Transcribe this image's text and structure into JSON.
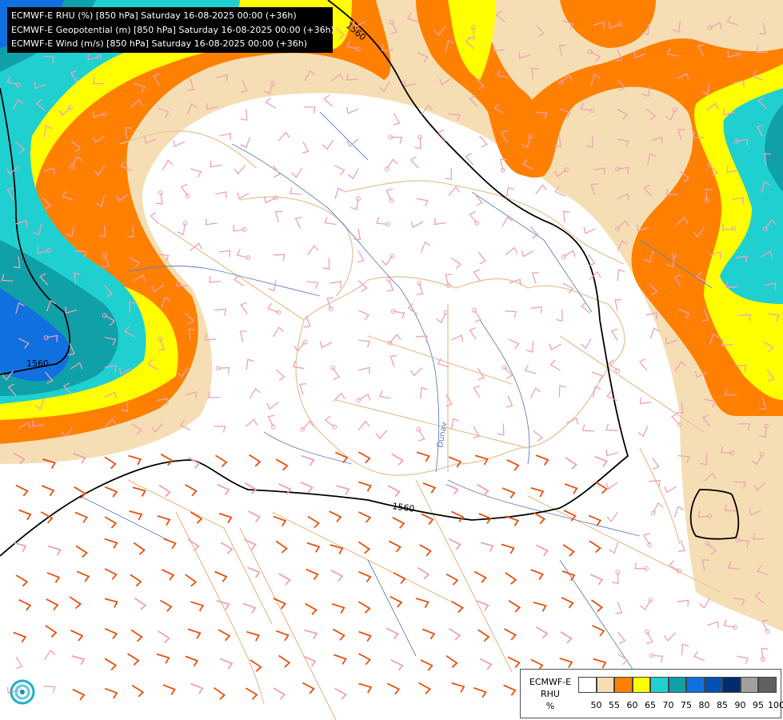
{
  "header": {
    "lines": [
      "ECMWF-E RHU (%) [850 hPa] Saturday 16-08-2025 00:00 (+36h)",
      "ECMWF-E Geopotential (m) [850 hPa] Saturday 16-08-2025 00:00 (+36h)",
      "ECMWF-E Wind (m/s) [850 hPa] Saturday 16-08-2025 00:00 (+36h)"
    ]
  },
  "map": {
    "contour_labels": [
      "1560",
      "1560",
      "1560"
    ],
    "river_label": "Dunav"
  },
  "legend": {
    "title_lines": [
      "ECMWF-E",
      "RHU",
      "%"
    ],
    "swatches": [
      {
        "color": "#ffffff"
      },
      {
        "color": "#f5deb3"
      },
      {
        "color": "#ff8000"
      },
      {
        "color": "#ffff00"
      },
      {
        "color": "#20d0d0"
      },
      {
        "color": "#10a0a8"
      },
      {
        "color": "#1070e0"
      },
      {
        "color": "#0050b0"
      },
      {
        "color": "#002b70"
      },
      {
        "color": "#a0a0a0"
      },
      {
        "color": "#606060"
      }
    ],
    "ticks": [
      "50",
      "55",
      "60",
      "65",
      "70",
      "75",
      "80",
      "85",
      "90",
      "95",
      "100"
    ]
  },
  "colors": {
    "tan": "#f5deb3",
    "orange": "#ff8000",
    "yellow": "#ffff00",
    "cyan": "#20d0d0",
    "teal": "#10a0a8",
    "blue": "#1070e0",
    "darkblue": "#0050b0",
    "border": "#e8c8a0",
    "river": "#6080c0",
    "wind_pink": "#f0a0b8",
    "wind_orange": "#e85010",
    "contour": "#000000"
  }
}
